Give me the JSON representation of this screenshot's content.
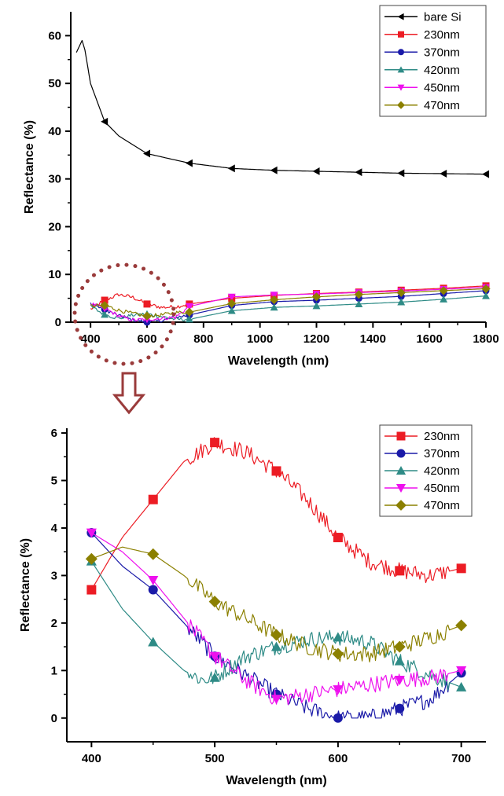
{
  "chart_data": [
    {
      "type": "line",
      "title": "",
      "xlabel": "Wavelength (nm)",
      "ylabel": "Reflectance (%)",
      "xlim": [
        330,
        1800
      ],
      "ylim": [
        0,
        65
      ],
      "xticks": [
        400,
        600,
        800,
        1000,
        1200,
        1400,
        1600,
        1800
      ],
      "yticks": [
        0,
        10,
        20,
        30,
        40,
        50,
        60
      ],
      "grid": false,
      "legend_position": "top-right",
      "series": [
        {
          "name": "bare Si",
          "color": "#000000",
          "marker": "triangle-left",
          "x": [
            350,
            370,
            380,
            400,
            450,
            500,
            600,
            750,
            900,
            1050,
            1200,
            1350,
            1500,
            1650,
            1800
          ],
          "y": [
            56.5,
            59,
            57,
            50,
            42,
            39,
            35.3,
            33.3,
            32.2,
            31.8,
            31.6,
            31.4,
            31.2,
            31.1,
            31.0
          ],
          "markers_x": [
            450,
            600,
            750,
            900,
            1050,
            1200,
            1350,
            1500,
            1650,
            1800
          ]
        },
        {
          "name": "230nm",
          "color": "#ec1c24",
          "marker": "square",
          "x": [
            400,
            450,
            500,
            550,
            600,
            650,
            700,
            750,
            900,
            1050,
            1200,
            1350,
            1500,
            1650,
            1800
          ],
          "y": [
            2.7,
            4.6,
            5.8,
            5.2,
            3.8,
            3.1,
            3.2,
            3.8,
            5.0,
            5.6,
            6.0,
            6.3,
            6.7,
            7.1,
            7.6
          ],
          "markers_x": [
            450,
            600,
            750,
            900,
            1050,
            1200,
            1350,
            1500,
            1650,
            1800
          ]
        },
        {
          "name": "370nm",
          "color": "#1a1aa8",
          "marker": "circle",
          "x": [
            400,
            450,
            500,
            550,
            600,
            650,
            700,
            750,
            900,
            1050,
            1200,
            1350,
            1500,
            1650,
            1800
          ],
          "y": [
            3.9,
            2.7,
            1.3,
            0.5,
            0.0,
            0.3,
            1.0,
            1.5,
            3.5,
            4.3,
            4.6,
            5.0,
            5.4,
            6.0,
            6.6
          ],
          "markers_x": [
            450,
            600,
            750,
            900,
            1050,
            1200,
            1350,
            1500,
            1650,
            1800
          ]
        },
        {
          "name": "420nm",
          "color": "#2e8b86",
          "marker": "triangle-up",
          "x": [
            400,
            450,
            500,
            550,
            600,
            650,
            700,
            750,
            900,
            1050,
            1200,
            1350,
            1500,
            1650,
            1800
          ],
          "y": [
            3.3,
            1.6,
            0.8,
            1.5,
            1.7,
            1.2,
            0.6,
            0.6,
            2.4,
            3.1,
            3.4,
            3.8,
            4.2,
            4.8,
            5.5
          ],
          "markers_x": [
            450,
            600,
            750,
            900,
            1050,
            1200,
            1350,
            1500,
            1650,
            1800
          ]
        },
        {
          "name": "450nm",
          "color": "#ee10ee",
          "marker": "triangle-down",
          "x": [
            400,
            450,
            500,
            550,
            600,
            650,
            700,
            750,
            900,
            1050,
            1200,
            1350,
            1500,
            1650,
            1800
          ],
          "y": [
            3.9,
            2.9,
            1.3,
            0.4,
            0.6,
            0.8,
            1.0,
            3.3,
            5.3,
            5.7,
            5.9,
            6.2,
            6.5,
            6.9,
            7.3
          ],
          "markers_x": [
            450,
            600,
            750,
            900,
            1050,
            1200,
            1350,
            1500,
            1650,
            1800
          ]
        },
        {
          "name": "470nm",
          "color": "#8b8000",
          "marker": "diamond",
          "x": [
            400,
            450,
            500,
            550,
            600,
            650,
            700,
            750,
            900,
            1050,
            1200,
            1350,
            1500,
            1650,
            1800
          ],
          "y": [
            3.4,
            3.5,
            2.5,
            1.8,
            1.3,
            1.5,
            2.0,
            2.1,
            3.9,
            4.7,
            5.3,
            5.8,
            6.2,
            6.6,
            7.0
          ],
          "markers_x": [
            450,
            600,
            750,
            900,
            1050,
            1200,
            1350,
            1500,
            1650,
            1800
          ]
        }
      ]
    },
    {
      "type": "line",
      "title": "",
      "xlabel": "Wavelength (nm)",
      "ylabel": "Reflectance (%)",
      "xlim": [
        380,
        720
      ],
      "ylim": [
        -0.5,
        6.1
      ],
      "xticks": [
        400,
        500,
        600,
        700
      ],
      "yticks": [
        0,
        1,
        2,
        3,
        4,
        5,
        6
      ],
      "grid": false,
      "legend_position": "top-right",
      "series": [
        {
          "name": "230nm",
          "color": "#ec1c24",
          "marker": "square",
          "x": [
            400,
            425,
            450,
            475,
            500,
            525,
            550,
            575,
            600,
            625,
            650,
            675,
            700
          ],
          "y": [
            2.7,
            3.8,
            4.6,
            5.4,
            5.8,
            5.6,
            5.2,
            4.6,
            3.8,
            3.3,
            3.1,
            3.0,
            3.15
          ],
          "markers_x": [
            400,
            450,
            500,
            550,
            600,
            650,
            700
          ]
        },
        {
          "name": "370nm",
          "color": "#1a1aa8",
          "marker": "circle",
          "x": [
            400,
            425,
            450,
            475,
            500,
            525,
            550,
            575,
            600,
            625,
            650,
            675,
            700
          ],
          "y": [
            3.9,
            3.2,
            2.7,
            2.0,
            1.3,
            0.9,
            0.5,
            0.2,
            0.0,
            0.0,
            0.2,
            0.4,
            0.95
          ],
          "markers_x": [
            400,
            450,
            500,
            550,
            600,
            650,
            700
          ]
        },
        {
          "name": "420nm",
          "color": "#2e8b86",
          "marker": "triangle-up",
          "x": [
            400,
            425,
            450,
            475,
            490,
            500,
            525,
            550,
            575,
            600,
            625,
            650,
            675,
            700
          ],
          "y": [
            3.3,
            2.3,
            1.6,
            1.0,
            0.8,
            0.85,
            1.3,
            1.5,
            1.65,
            1.7,
            1.6,
            1.2,
            0.9,
            0.65
          ],
          "markers_x": [
            400,
            450,
            500,
            550,
            600,
            650,
            700
          ]
        },
        {
          "name": "450nm",
          "color": "#ee10ee",
          "marker": "triangle-down",
          "x": [
            400,
            425,
            450,
            475,
            500,
            525,
            550,
            575,
            600,
            625,
            650,
            675,
            700
          ],
          "y": [
            3.9,
            3.5,
            2.9,
            2.1,
            1.3,
            0.8,
            0.4,
            0.5,
            0.6,
            0.7,
            0.8,
            0.85,
            1.0
          ],
          "markers_x": [
            400,
            450,
            500,
            550,
            600,
            650,
            700
          ]
        },
        {
          "name": "470nm",
          "color": "#8b8000",
          "marker": "diamond",
          "x": [
            400,
            425,
            450,
            475,
            500,
            525,
            550,
            575,
            600,
            625,
            650,
            675,
            700
          ],
          "y": [
            3.35,
            3.6,
            3.45,
            3.0,
            2.45,
            2.1,
            1.75,
            1.5,
            1.35,
            1.35,
            1.5,
            1.7,
            1.95
          ],
          "markers_x": [
            400,
            450,
            500,
            550,
            600,
            650,
            700
          ]
        }
      ]
    }
  ],
  "colors": {
    "highlight_circle": "#9a3b3b",
    "arrow": "#9a3b3b"
  }
}
